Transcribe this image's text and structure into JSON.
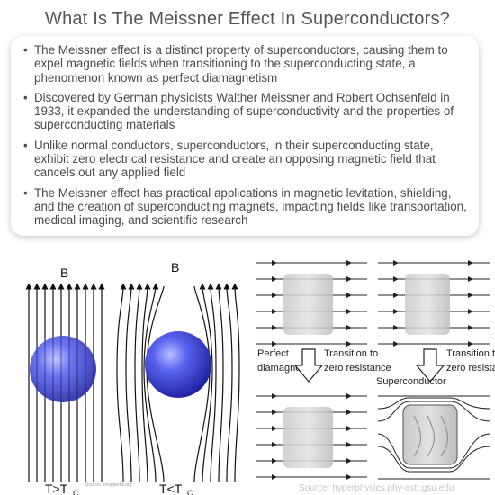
{
  "title": "What Is The Meissner Effect In Superconductors?",
  "bullets": [
    "The Meissner effect is a distinct property of superconductors, causing them to expel magnetic fields when transitioning to the superconducting state, a phenomenon known as perfect diamagnetism",
    "Discovered by German physicists Walther Meissner and Robert Ochsenfeld in 1933, it expanded the understanding of superconductivity and the properties of superconducting materials",
    "Unlike normal conductors, superconductors, in their superconducting state, exhibit zero electrical resistance and create an opposing magnetic field that cancels out any applied field",
    "The Meissner effect has practical applications in magnetic levitation, shielding, and the creation of superconducting magnets, impacting fields like transportation, medical imaging, and scientific research"
  ],
  "figure_left": {
    "field_label_1": "B",
    "field_label_2": "B",
    "temp_label_1": "T>T",
    "temp_label_2": "T<T",
    "temp_subscript": "C",
    "credit": "Source: emojipedia.org"
  },
  "figure_right": {
    "label_perfect": "Perfect",
    "label_diamagnet": "diamagnet",
    "label_transition_1": "Transition to",
    "label_zero_1": "zero resistance",
    "label_superconductor": "Superconductor",
    "label_transition_2": "Transition to",
    "label_zero_2": "zero resistance",
    "source": "Source: hyperphysics.phy-astr.gsu.edu"
  }
}
